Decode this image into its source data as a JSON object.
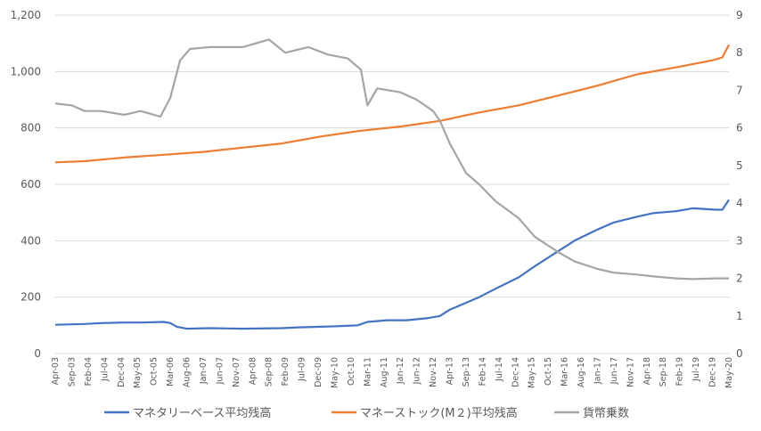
{
  "chart_data": {
    "type": "line",
    "title": "",
    "xlabel": "",
    "ylabel": "",
    "ylim": [
      0,
      1200
    ],
    "y_ticks": [
      "0",
      "200",
      "400",
      "600",
      "800",
      "1,000",
      "1,200"
    ],
    "y2lim": [
      0,
      9
    ],
    "y2_ticks": [
      "0",
      "1",
      "2",
      "3",
      "4",
      "5",
      "6",
      "7",
      "8",
      "9"
    ],
    "x_range": [
      "2003-04",
      "2020-05"
    ],
    "grid": "horizontal",
    "legend_position": "bottom",
    "x_ticks": [
      "Apr-03",
      "Sep-03",
      "Feb-04",
      "Jul-04",
      "Dec-04",
      "May-05",
      "Oct-05",
      "Mar-06",
      "Aug-06",
      "Jan-07",
      "Jun-07",
      "Nov-07",
      "Apr-08",
      "Sep-08",
      "Feb-09",
      "Jul-09",
      "Dec-09",
      "May-10",
      "Oct-10",
      "Mar-11",
      "Aug-11",
      "Jan-12",
      "Jun-12",
      "Nov-12",
      "Apr-13",
      "Sep-13",
      "Feb-14",
      "Jul-14",
      "Dec-14",
      "May-15",
      "Oct-15",
      "Mar-16",
      "Aug-16",
      "Jan-17",
      "Jun-17",
      "Nov-17",
      "Apr-18",
      "Sep-18",
      "Feb-19",
      "Jul-19",
      "Dec-19",
      "May-20"
    ],
    "series": [
      {
        "name": "マネタリーベース平均残高",
        "axis": "left",
        "color": "#4472c4",
        "points": [
          [
            "2003-04",
            102
          ],
          [
            "2004-01",
            105
          ],
          [
            "2004-06",
            108
          ],
          [
            "2005-01",
            110
          ],
          [
            "2005-06",
            110
          ],
          [
            "2006-01",
            112
          ],
          [
            "2006-03",
            108
          ],
          [
            "2006-05",
            95
          ],
          [
            "2006-08",
            88
          ],
          [
            "2007-03",
            90
          ],
          [
            "2008-01",
            88
          ],
          [
            "2009-01",
            90
          ],
          [
            "2009-06",
            93
          ],
          [
            "2010-01",
            95
          ],
          [
            "2010-06",
            97
          ],
          [
            "2010-12",
            100
          ],
          [
            "2011-03",
            112
          ],
          [
            "2011-09",
            118
          ],
          [
            "2012-03",
            118
          ],
          [
            "2012-09",
            125
          ],
          [
            "2013-01",
            133
          ],
          [
            "2013-04",
            155
          ],
          [
            "2013-09",
            180
          ],
          [
            "2014-01",
            200
          ],
          [
            "2014-06",
            230
          ],
          [
            "2015-01",
            270
          ],
          [
            "2015-06",
            310
          ],
          [
            "2015-12",
            355
          ],
          [
            "2016-06",
            400
          ],
          [
            "2017-01",
            440
          ],
          [
            "2017-06",
            465
          ],
          [
            "2018-01",
            485
          ],
          [
            "2018-06",
            498
          ],
          [
            "2019-01",
            505
          ],
          [
            "2019-06",
            515
          ],
          [
            "2020-01",
            510
          ],
          [
            "2020-03",
            510
          ],
          [
            "2020-05",
            545
          ]
        ]
      },
      {
        "name": "マネーストック(M２)平均残高",
        "axis": "left",
        "color": "#ed7d31",
        "points": [
          [
            "2003-04",
            678
          ],
          [
            "2004-01",
            682
          ],
          [
            "2005-01",
            695
          ],
          [
            "2006-01",
            705
          ],
          [
            "2007-01",
            715
          ],
          [
            "2008-01",
            730
          ],
          [
            "2009-01",
            745
          ],
          [
            "2010-01",
            770
          ],
          [
            "2011-01",
            790
          ],
          [
            "2012-01",
            805
          ],
          [
            "2013-01",
            825
          ],
          [
            "2014-01",
            855
          ],
          [
            "2015-01",
            880
          ],
          [
            "2016-01",
            915
          ],
          [
            "2017-01",
            950
          ],
          [
            "2018-01",
            990
          ],
          [
            "2019-01",
            1015
          ],
          [
            "2019-12",
            1040
          ],
          [
            "2020-03",
            1050
          ],
          [
            "2020-05",
            1095
          ]
        ]
      },
      {
        "name": "貨幣乗数",
        "axis": "right",
        "color": "#a5a5a5",
        "points": [
          [
            "2003-04",
            6.65
          ],
          [
            "2003-09",
            6.6
          ],
          [
            "2004-01",
            6.45
          ],
          [
            "2004-06",
            6.45
          ],
          [
            "2005-01",
            6.35
          ],
          [
            "2005-06",
            6.45
          ],
          [
            "2005-12",
            6.3
          ],
          [
            "2006-03",
            6.8
          ],
          [
            "2006-06",
            7.8
          ],
          [
            "2006-09",
            8.1
          ],
          [
            "2007-03",
            8.15
          ],
          [
            "2008-01",
            8.15
          ],
          [
            "2008-09",
            8.35
          ],
          [
            "2009-02",
            8.0
          ],
          [
            "2009-09",
            8.15
          ],
          [
            "2010-03",
            7.95
          ],
          [
            "2010-09",
            7.85
          ],
          [
            "2011-01",
            7.55
          ],
          [
            "2011-03",
            6.6
          ],
          [
            "2011-06",
            7.05
          ],
          [
            "2012-01",
            6.95
          ],
          [
            "2012-06",
            6.75
          ],
          [
            "2012-11",
            6.45
          ],
          [
            "2013-01",
            6.2
          ],
          [
            "2013-04",
            5.6
          ],
          [
            "2013-09",
            4.8
          ],
          [
            "2014-01",
            4.5
          ],
          [
            "2014-06",
            4.05
          ],
          [
            "2015-01",
            3.6
          ],
          [
            "2015-06",
            3.1
          ],
          [
            "2016-01",
            2.7
          ],
          [
            "2016-06",
            2.45
          ],
          [
            "2017-01",
            2.25
          ],
          [
            "2017-06",
            2.15
          ],
          [
            "2018-01",
            2.1
          ],
          [
            "2018-06",
            2.05
          ],
          [
            "2019-01",
            2.0
          ],
          [
            "2019-06",
            1.98
          ],
          [
            "2020-01",
            2.0
          ],
          [
            "2020-05",
            2.0
          ]
        ]
      }
    ]
  }
}
